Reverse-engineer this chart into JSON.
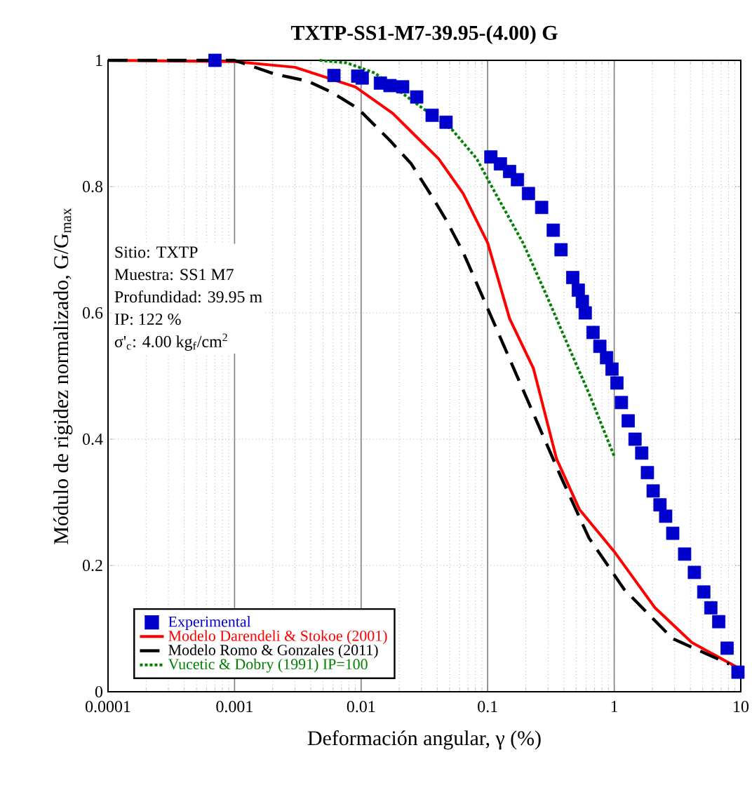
{
  "chart_data": {
    "type": "line",
    "title": "TXTP-SS1-M7-39.95-(4.00) G",
    "xlabel": "Deformación angular, γ (%)",
    "ylabel": "Módulo de rigidez normalizado, G/G$_{max}$",
    "log": "x",
    "grid": true,
    "legend": "bottom left",
    "xlim": [
      0.0001,
      10
    ],
    "xticks": [
      0.0001,
      0.001,
      0.01,
      0.1,
      1,
      10
    ],
    "ylim": [
      0,
      1
    ],
    "yticks": [
      0,
      0.2,
      0.4,
      0.6,
      0.8,
      1
    ],
    "annotations": [
      "Sitio: TXTP",
      "Muestra: SS1 M7",
      "Profundidad: 39.95 m",
      "IP: 122 %",
      "σ'$_{c}$: 4.00 kg$_{f}$/cm$^{2}$"
    ],
    "series": [
      {
        "name": "Experimental",
        "type": "scatter",
        "marker": "square",
        "color": "#0000cc",
        "x": [
          0.0007,
          0.0061,
          0.0094,
          0.0102,
          0.0142,
          0.0169,
          0.0213,
          0.0275,
          0.0364,
          0.0469,
          0.106,
          0.126,
          0.149,
          0.172,
          0.21,
          0.267,
          0.33,
          0.38,
          0.47,
          0.52,
          0.56,
          0.59,
          0.68,
          0.77,
          0.87,
          0.96,
          1.05,
          1.14,
          1.29,
          1.46,
          1.65,
          1.83,
          2.03,
          2.3,
          2.55,
          2.9,
          3.6,
          4.3,
          5.1,
          5.8,
          6.7,
          7.8,
          9.5
        ],
        "values": [
          1.0,
          0.976,
          0.975,
          0.972,
          0.964,
          0.96,
          0.958,
          0.942,
          0.913,
          0.902,
          0.847,
          0.836,
          0.824,
          0.811,
          0.789,
          0.767,
          0.731,
          0.7,
          0.656,
          0.636,
          0.618,
          0.6,
          0.569,
          0.547,
          0.529,
          0.511,
          0.489,
          0.458,
          0.429,
          0.4,
          0.378,
          0.347,
          0.318,
          0.296,
          0.278,
          0.251,
          0.218,
          0.189,
          0.158,
          0.133,
          0.111,
          0.069,
          0.031
        ]
      },
      {
        "name": "Modelo Darendeli & Stokoe (2001)",
        "line_style": "solid",
        "color": "#ff0000",
        "x": [
          0.0001,
          0.001,
          0.003,
          0.009,
          0.0178,
          0.027,
          0.041,
          0.064,
          0.1,
          0.149,
          0.23,
          0.35,
          0.53,
          1.0,
          2.1,
          4.1,
          9.9
        ],
        "values": [
          1.0,
          0.998,
          0.989,
          0.958,
          0.916,
          0.88,
          0.844,
          0.789,
          0.711,
          0.591,
          0.512,
          0.369,
          0.289,
          0.222,
          0.133,
          0.078,
          0.036
        ]
      },
      {
        "name": "Modelo Romo & Gonzales (2011)",
        "line_style": "dashed",
        "color": "#000000",
        "x": [
          0.0001,
          0.001,
          0.0021,
          0.0038,
          0.0059,
          0.0094,
          0.0169,
          0.0249,
          0.0364,
          0.047,
          0.064,
          0.1,
          0.156,
          0.38,
          0.63,
          1.2,
          2.9,
          8.1
        ],
        "values": [
          1.0,
          1.0,
          0.978,
          0.967,
          0.949,
          0.924,
          0.873,
          0.836,
          0.784,
          0.747,
          0.696,
          0.607,
          0.518,
          0.34,
          0.244,
          0.162,
          0.084,
          0.044
        ]
      },
      {
        "name": "Vucetic & Dobry (1991) IP=100",
        "line_style": "dotted",
        "color": "#008000",
        "x": [
          0.0047,
          0.0077,
          0.0128,
          0.053,
          0.082,
          0.114,
          0.19,
          0.29,
          0.45,
          0.63,
          1.0
        ],
        "values": [
          1.0,
          0.996,
          0.98,
          0.889,
          0.844,
          0.791,
          0.711,
          0.629,
          0.54,
          0.473,
          0.373
        ]
      }
    ]
  }
}
